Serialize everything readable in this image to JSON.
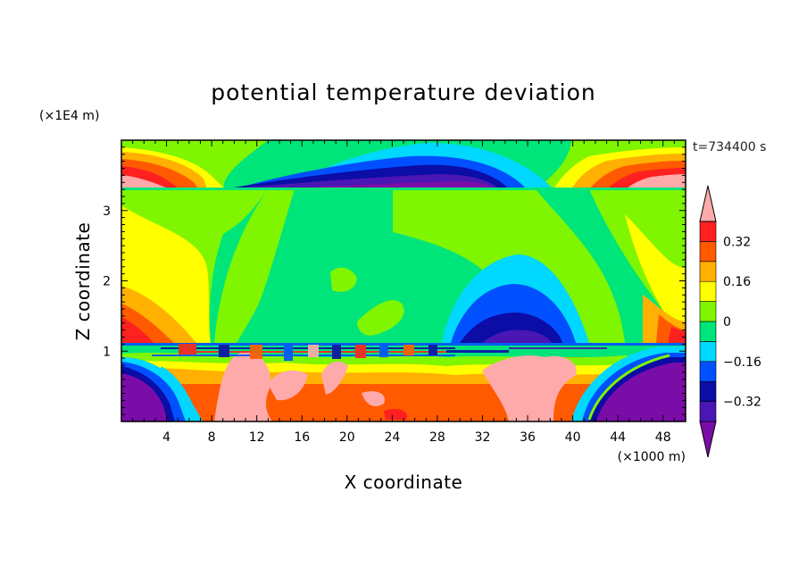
{
  "chart_data": {
    "type": "heatmap",
    "title": "potential temperature deviation",
    "xlabel": "X coordinate",
    "ylabel": "Z coordinate",
    "x_unit": "(×1000 m)",
    "y_unit": "(×1E4 m)",
    "time_label": "t=734400 s",
    "xlim": [
      0,
      50
    ],
    "ylim": [
      0,
      4
    ],
    "x_ticks": [
      4,
      8,
      12,
      16,
      20,
      24,
      28,
      32,
      36,
      40,
      44,
      48
    ],
    "y_ticks": [
      1,
      2,
      3
    ],
    "colorbar": {
      "levels": [
        -0.4,
        -0.32,
        -0.24,
        -0.16,
        -0.08,
        0,
        0.08,
        0.16,
        0.24,
        0.32,
        0.4
      ],
      "labels": [
        "0.32",
        "0.16",
        "0",
        "−0.16",
        "−0.32"
      ],
      "label_values": [
        0.32,
        0.16,
        0,
        -0.16,
        -0.32
      ],
      "colors": [
        "#7a0ca8",
        "#4a16b4",
        "#0c0ca6",
        "#0050ff",
        "#00d8ff",
        "#00e57a",
        "#7ff500",
        "#ffff00",
        "#ffb000",
        "#ff5a00",
        "#ff2020",
        "#ffaaaa"
      ]
    }
  }
}
